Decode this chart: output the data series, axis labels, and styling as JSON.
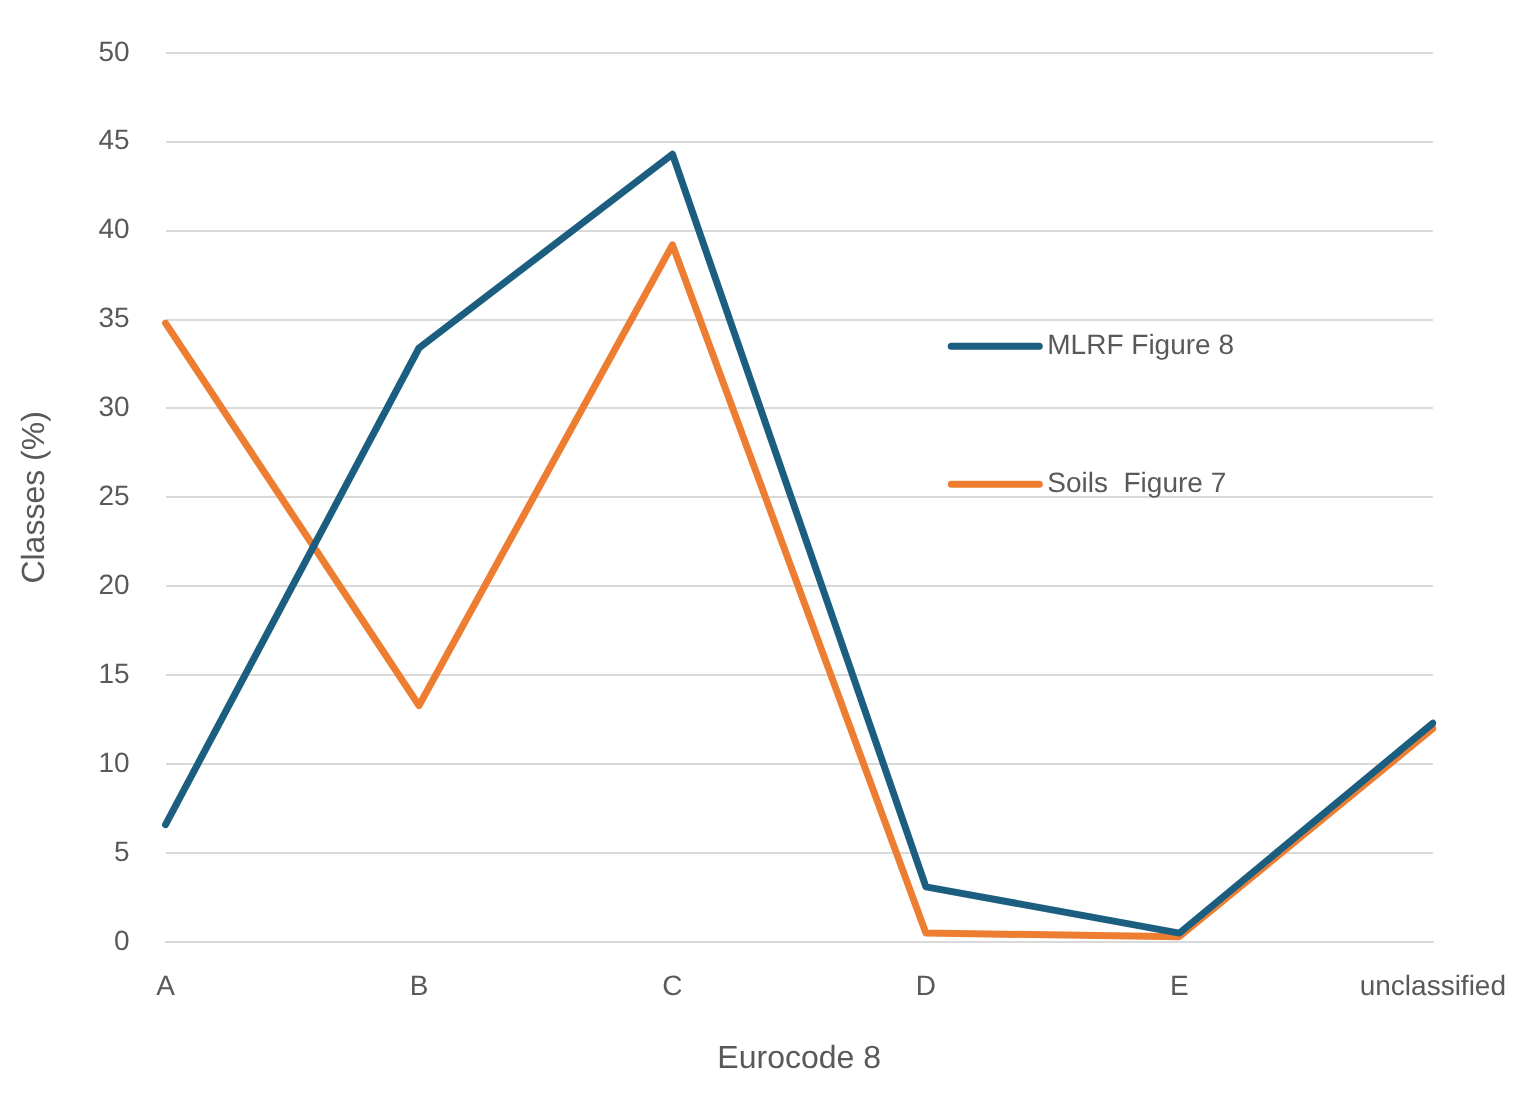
{
  "chart_data": {
    "type": "line",
    "xlabel": "Eurocode 8",
    "ylabel": "Classes (%)",
    "categories": [
      "A",
      "B",
      "C",
      "D",
      "E",
      "unclassified"
    ],
    "series": [
      {
        "name": "MLRF Figure 8",
        "color": "#1b5e80",
        "values": [
          6.6,
          33.4,
          44.3,
          3.1,
          0.5,
          12.3
        ]
      },
      {
        "name": "Soils  Figure 7",
        "color": "#ed7d31",
        "values": [
          34.8,
          13.3,
          39.2,
          0.5,
          0.3,
          12.0
        ]
      }
    ],
    "ylim": [
      0,
      50
    ],
    "yticks": [
      0,
      5,
      10,
      15,
      20,
      25,
      30,
      35,
      40,
      45,
      50
    ],
    "grid": "y",
    "legend": "right",
    "marker": "none",
    "line_style": "solid"
  }
}
